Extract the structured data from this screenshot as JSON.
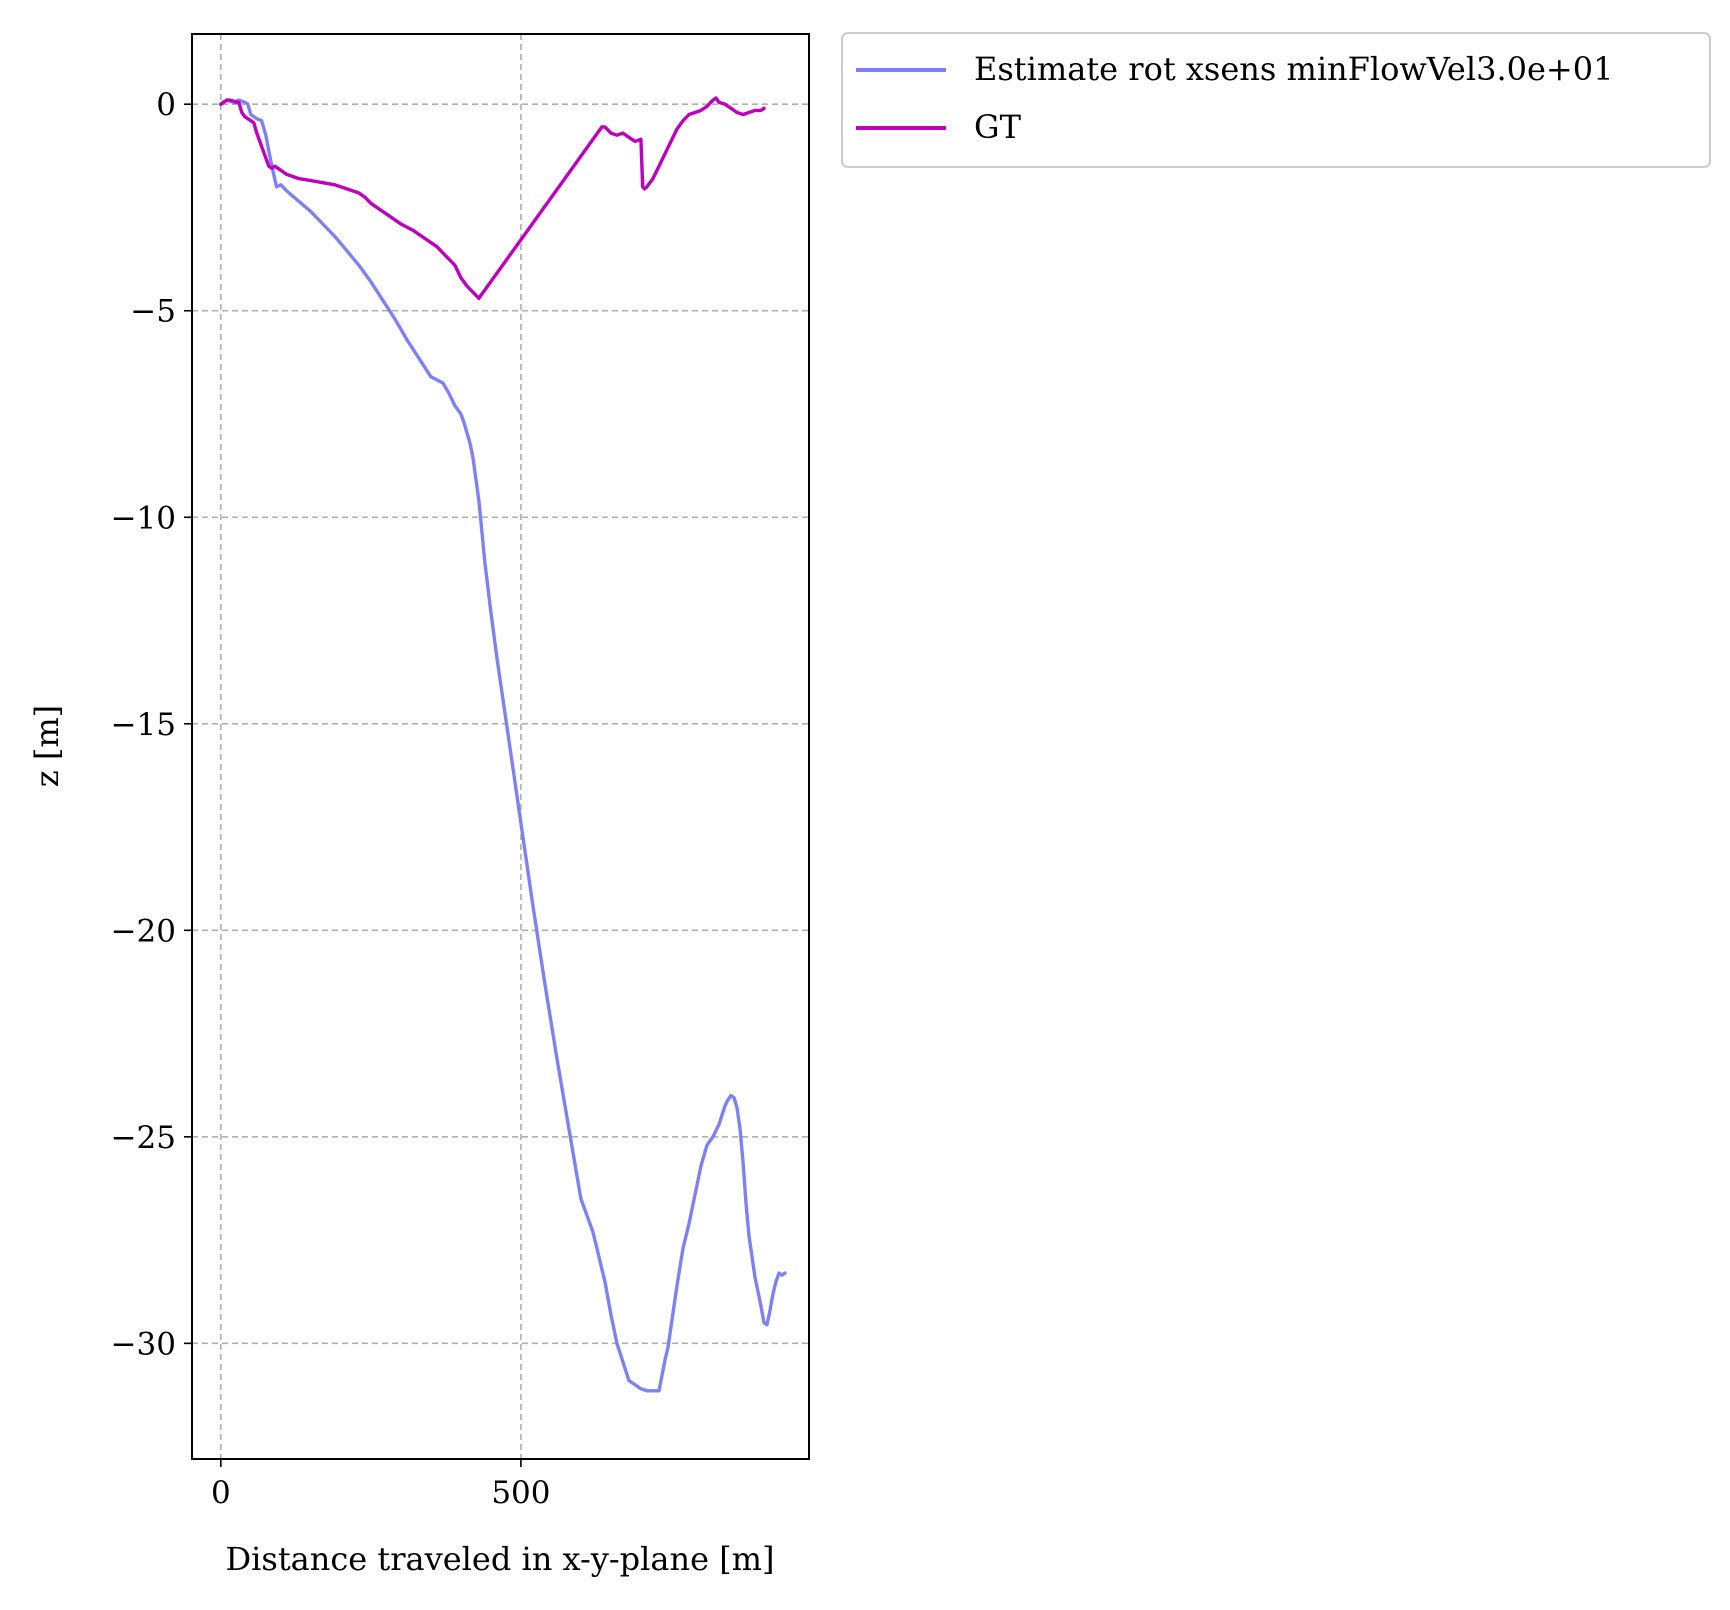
{
  "chart_data": {
    "type": "line",
    "title": "",
    "xlabel": "Distance traveled in x-y-plane [m]",
    "ylabel": "z [m]",
    "xlim": [
      -48,
      980
    ],
    "ylim": [
      -32.8,
      1.7
    ],
    "xticks": [
      {
        "value": 0,
        "label": "0"
      },
      {
        "value": 500,
        "label": "500"
      }
    ],
    "yticks": [
      {
        "value": 0,
        "label": "0"
      },
      {
        "value": -5,
        "label": "−5"
      },
      {
        "value": -10,
        "label": "−10"
      },
      {
        "value": -15,
        "label": "−15"
      },
      {
        "value": -20,
        "label": "−20"
      },
      {
        "value": -25,
        "label": "−25"
      },
      {
        "value": -30,
        "label": "−30"
      }
    ],
    "grid": true,
    "legend_position": "outside upper right",
    "series": [
      {
        "name": "Estimate rot xsens minFlowVel3.0e+01",
        "color": "#8080f5",
        "x": [
          0,
          10,
          20,
          30,
          40,
          45,
          50,
          60,
          68,
          75,
          85,
          93,
          100,
          110,
          130,
          150,
          170,
          190,
          210,
          230,
          250,
          270,
          290,
          310,
          330,
          350,
          370,
          380,
          390,
          395,
          400,
          405,
          410,
          415,
          420,
          430,
          440,
          450,
          460,
          470,
          480,
          500,
          520,
          540,
          560,
          580,
          600,
          620,
          640,
          650,
          660,
          680,
          700,
          710,
          720,
          730,
          740,
          745,
          750,
          760,
          770,
          780,
          790,
          800,
          810,
          820,
          830,
          840,
          845,
          850,
          855,
          860,
          865,
          870,
          875,
          880,
          890,
          900,
          905,
          910,
          915,
          920,
          925,
          930,
          935,
          940
        ],
        "y": [
          0.0,
          0.1,
          0.05,
          0.1,
          0.05,
          0.0,
          -0.25,
          -0.35,
          -0.4,
          -0.75,
          -1.5,
          -2.0,
          -1.95,
          -2.1,
          -2.35,
          -2.6,
          -2.9,
          -3.2,
          -3.55,
          -3.9,
          -4.3,
          -4.75,
          -5.2,
          -5.7,
          -6.15,
          -6.6,
          -6.75,
          -7.0,
          -7.3,
          -7.4,
          -7.5,
          -7.7,
          -7.95,
          -8.2,
          -8.55,
          -9.6,
          -11.1,
          -12.3,
          -13.4,
          -14.4,
          -15.4,
          -17.4,
          -19.4,
          -21.3,
          -23.1,
          -24.8,
          -26.5,
          -27.3,
          -28.5,
          -29.3,
          -30.0,
          -30.9,
          -31.1,
          -31.15,
          -31.15,
          -31.15,
          -30.4,
          -30.1,
          -29.6,
          -28.6,
          -27.7,
          -27.1,
          -26.4,
          -25.7,
          -25.2,
          -25.0,
          -24.7,
          -24.25,
          -24.1,
          -24.0,
          -24.05,
          -24.3,
          -24.8,
          -25.6,
          -26.6,
          -27.4,
          -28.4,
          -29.1,
          -29.5,
          -29.55,
          -29.2,
          -28.8,
          -28.5,
          -28.3,
          -28.35,
          -28.3
        ]
      },
      {
        "name": "GT",
        "color": "#bf00bf",
        "x": [
          0,
          5,
          10,
          15,
          20,
          25,
          30,
          35,
          40,
          45,
          50,
          55,
          60,
          65,
          70,
          75,
          80,
          85,
          90,
          95,
          100,
          105,
          110,
          130,
          150,
          170,
          190,
          210,
          230,
          240,
          250,
          260,
          270,
          280,
          290,
          300,
          320,
          340,
          360,
          370,
          380,
          390,
          395,
          400,
          410,
          420,
          430,
          635,
          640,
          650,
          660,
          670,
          680,
          690,
          700,
          703,
          706,
          710,
          715,
          720,
          730,
          740,
          750,
          760,
          770,
          780,
          790,
          800,
          810,
          820,
          825,
          830,
          840,
          850,
          860,
          870,
          880,
          890,
          900,
          905
        ],
        "y": [
          0.0,
          0.05,
          0.1,
          0.1,
          0.08,
          0.05,
          0.05,
          -0.2,
          -0.3,
          -0.35,
          -0.4,
          -0.45,
          -0.7,
          -0.9,
          -1.1,
          -1.3,
          -1.5,
          -1.55,
          -1.5,
          -1.55,
          -1.6,
          -1.65,
          -1.7,
          -1.8,
          -1.85,
          -1.9,
          -1.95,
          -2.05,
          -2.15,
          -2.25,
          -2.4,
          -2.5,
          -2.6,
          -2.7,
          -2.8,
          -2.9,
          -3.05,
          -3.25,
          -3.45,
          -3.6,
          -3.75,
          -3.9,
          -4.05,
          -4.2,
          -4.4,
          -4.55,
          -4.7,
          -0.55,
          -0.55,
          -0.7,
          -0.75,
          -0.7,
          -0.8,
          -0.9,
          -0.85,
          -2.0,
          -2.05,
          -2.0,
          -1.9,
          -1.8,
          -1.5,
          -1.2,
          -0.9,
          -0.6,
          -0.4,
          -0.25,
          -0.2,
          -0.15,
          -0.05,
          0.1,
          0.15,
          0.05,
          0.0,
          -0.1,
          -0.2,
          -0.25,
          -0.2,
          -0.15,
          -0.15,
          -0.1
        ]
      }
    ]
  }
}
